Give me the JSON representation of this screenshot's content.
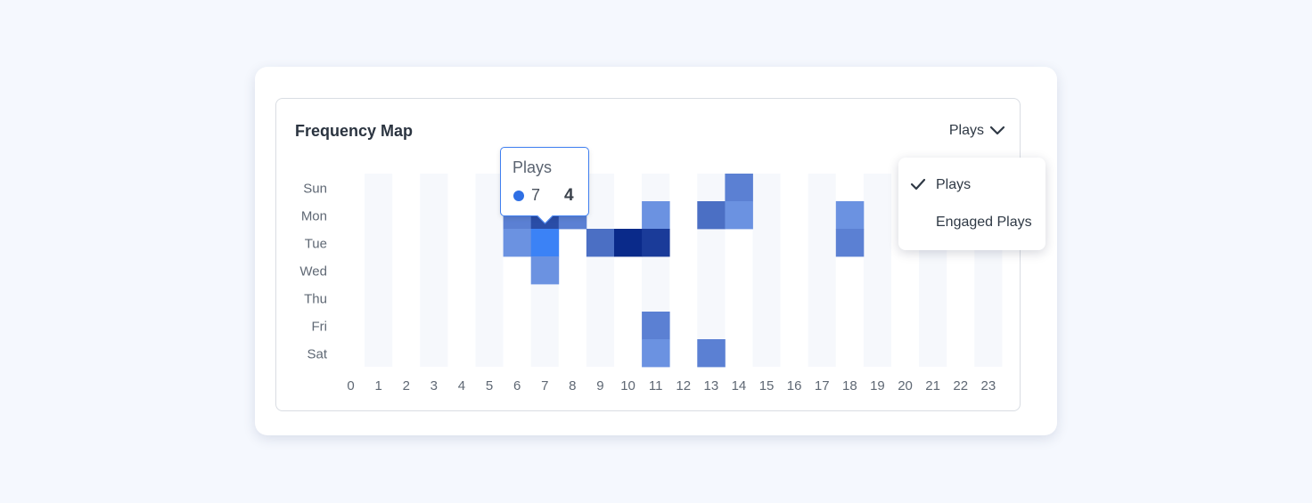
{
  "card": {
    "title": "Frequency Map"
  },
  "metric_select": {
    "selected": "Plays"
  },
  "dropdown": {
    "options": [
      {
        "label": "Plays",
        "checked": true
      },
      {
        "label": "Engaged Plays",
        "checked": false
      }
    ]
  },
  "tooltip": {
    "title": "Plays",
    "hour": "7",
    "value": "4",
    "dot_color": "#2f6fe4"
  },
  "chart_data": {
    "type": "heatmap",
    "title": "Frequency Map",
    "series_name": "Plays",
    "y_categories": [
      "Sun",
      "Mon",
      "Tue",
      "Wed",
      "Thu",
      "Fri",
      "Sat"
    ],
    "x_categories": [
      "0",
      "1",
      "2",
      "3",
      "4",
      "5",
      "6",
      "7",
      "8",
      "9",
      "10",
      "11",
      "12",
      "13",
      "14",
      "15",
      "16",
      "17",
      "18",
      "19",
      "20",
      "21",
      "22",
      "23"
    ],
    "cells": [
      {
        "day": "Sun",
        "hour": 14,
        "value": 3
      },
      {
        "day": "Mon",
        "hour": 6,
        "value": 3
      },
      {
        "day": "Mon",
        "hour": 7,
        "value": 6
      },
      {
        "day": "Mon",
        "hour": 8,
        "value": 3
      },
      {
        "day": "Mon",
        "hour": 11,
        "value": 2
      },
      {
        "day": "Mon",
        "hour": 13,
        "value": 4
      },
      {
        "day": "Mon",
        "hour": 14,
        "value": 2
      },
      {
        "day": "Mon",
        "hour": 18,
        "value": 2
      },
      {
        "day": "Tue",
        "hour": 6,
        "value": 2
      },
      {
        "day": "Tue",
        "hour": 7,
        "value": 4
      },
      {
        "day": "Tue",
        "hour": 9,
        "value": 4
      },
      {
        "day": "Tue",
        "hour": 10,
        "value": 8
      },
      {
        "day": "Tue",
        "hour": 11,
        "value": 7
      },
      {
        "day": "Tue",
        "hour": 18,
        "value": 3
      },
      {
        "day": "Wed",
        "hour": 7,
        "value": 2
      },
      {
        "day": "Fri",
        "hour": 11,
        "value": 3
      },
      {
        "day": "Sat",
        "hour": 11,
        "value": 2
      },
      {
        "day": "Sat",
        "hour": 13,
        "value": 3
      }
    ],
    "value_range": [
      0,
      8
    ],
    "color_scale": [
      "#7ba3f0",
      "#0a2a8a"
    ],
    "highlight": {
      "day": "Tue",
      "hour": 7,
      "color": "#3b82f6"
    },
    "column_band_color": "#f6f8fc",
    "legend": "none"
  }
}
